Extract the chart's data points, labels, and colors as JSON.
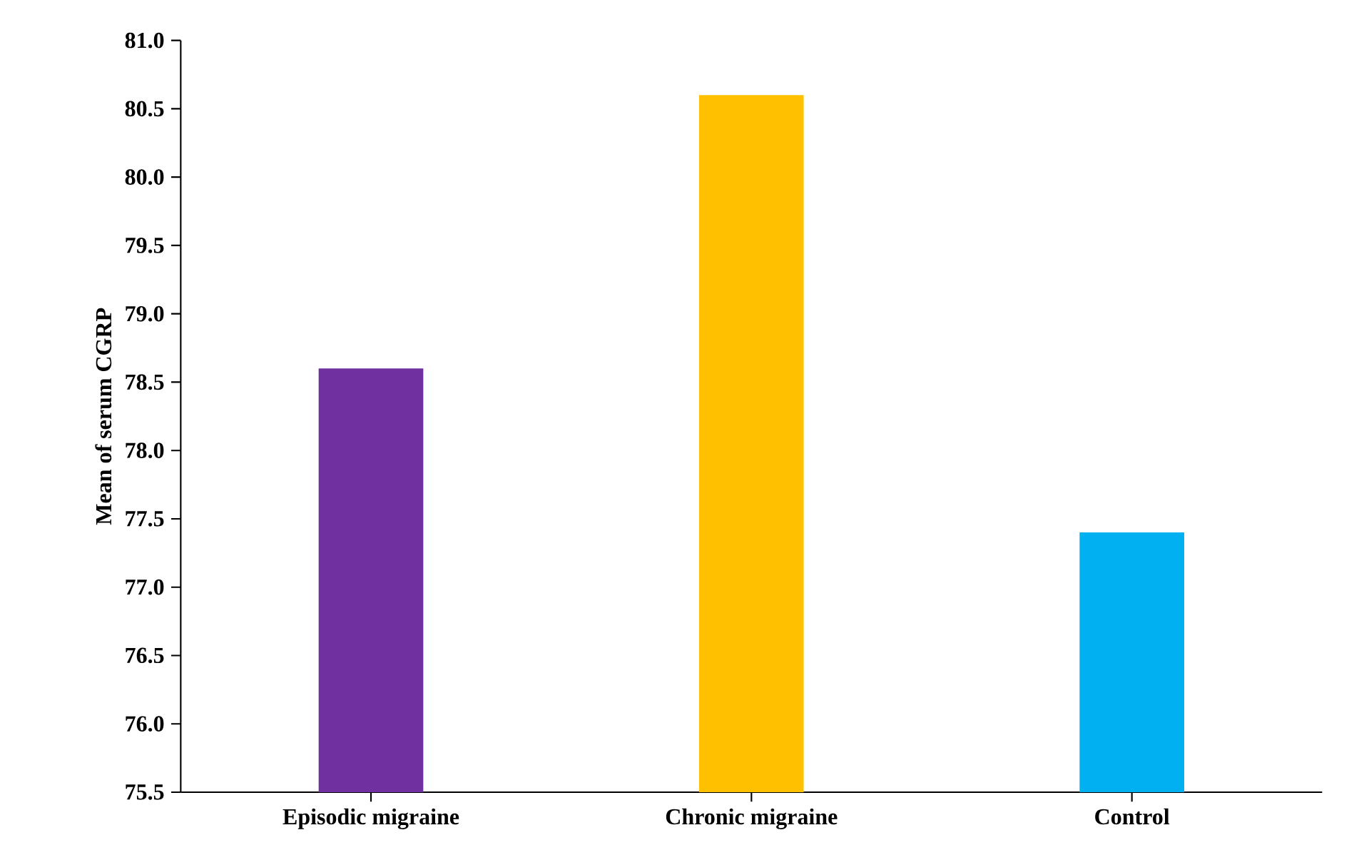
{
  "chart_data": {
    "type": "bar",
    "ylabel": "Mean of serum CGRP",
    "categories": [
      "Episodic migraine",
      "Chronic migraine",
      "Control"
    ],
    "values": [
      78.6,
      80.6,
      77.4
    ],
    "colors": [
      "#7030a0",
      "#ffc000",
      "#00b0f0"
    ],
    "ylim": [
      75.5,
      81.0
    ],
    "yticks": [
      {
        "value": 75.5,
        "label": "75.5"
      },
      {
        "value": 76,
        "label": "76.0"
      },
      {
        "value": 76.5,
        "label": "76.5"
      },
      {
        "value": 77,
        "label": "77.0"
      },
      {
        "value": 77.5,
        "label": "77.5"
      },
      {
        "value": 78,
        "label": "78.0"
      },
      {
        "value": 78.5,
        "label": "78.5"
      },
      {
        "value": 79,
        "label": "79.0"
      },
      {
        "value": 79.5,
        "label": "79.5"
      },
      {
        "value": 80,
        "label": "80.0"
      },
      {
        "value": 80.5,
        "label": "80.5"
      },
      {
        "value": 81,
        "label": "81.0"
      }
    ]
  }
}
